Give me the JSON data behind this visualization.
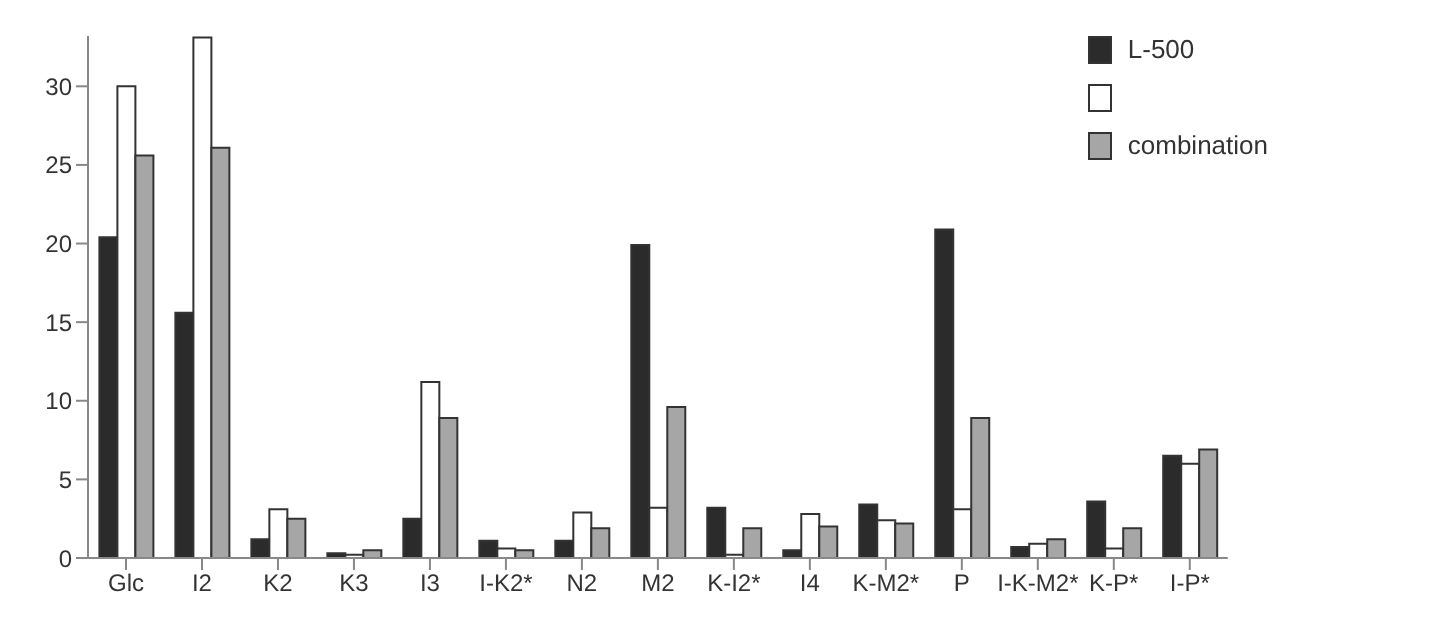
{
  "chart_data": {
    "type": "bar",
    "categories": [
      "Glc",
      "I2",
      "K2",
      "K3",
      "I3",
      "I-K2*",
      "N2",
      "M2",
      "K-I2*",
      "I4",
      "K-M2*",
      "P",
      "I-K-M2*",
      "K-P*",
      "I-P*"
    ],
    "series": [
      {
        "name": "L-500",
        "color": "#2b2b2b",
        "values": [
          20.4,
          15.6,
          1.2,
          0.3,
          2.5,
          1.1,
          1.1,
          19.9,
          3.2,
          0.5,
          3.4,
          20.9,
          0.7,
          3.6,
          6.5
        ]
      },
      {
        "color": "#ffffff",
        "values": [
          30,
          33.1,
          3.1,
          0.2,
          11.2,
          0.6,
          2.9,
          3.2,
          0.2,
          2.8,
          2.4,
          3.1,
          0.9,
          0.6,
          6.0
        ]
      },
      {
        "name": "combination",
        "color": "#a6a6a6",
        "values": [
          25.6,
          26.1,
          2.5,
          0.5,
          8.9,
          0.5,
          1.9,
          9.6,
          1.9,
          2.0,
          2.2,
          8.9,
          1.2,
          1.9,
          6.9
        ]
      }
    ],
    "ylim": [
      0,
      33.2
    ],
    "yticks": [
      0,
      5,
      10,
      15,
      20,
      25,
      30
    ],
    "legend": "top right"
  }
}
